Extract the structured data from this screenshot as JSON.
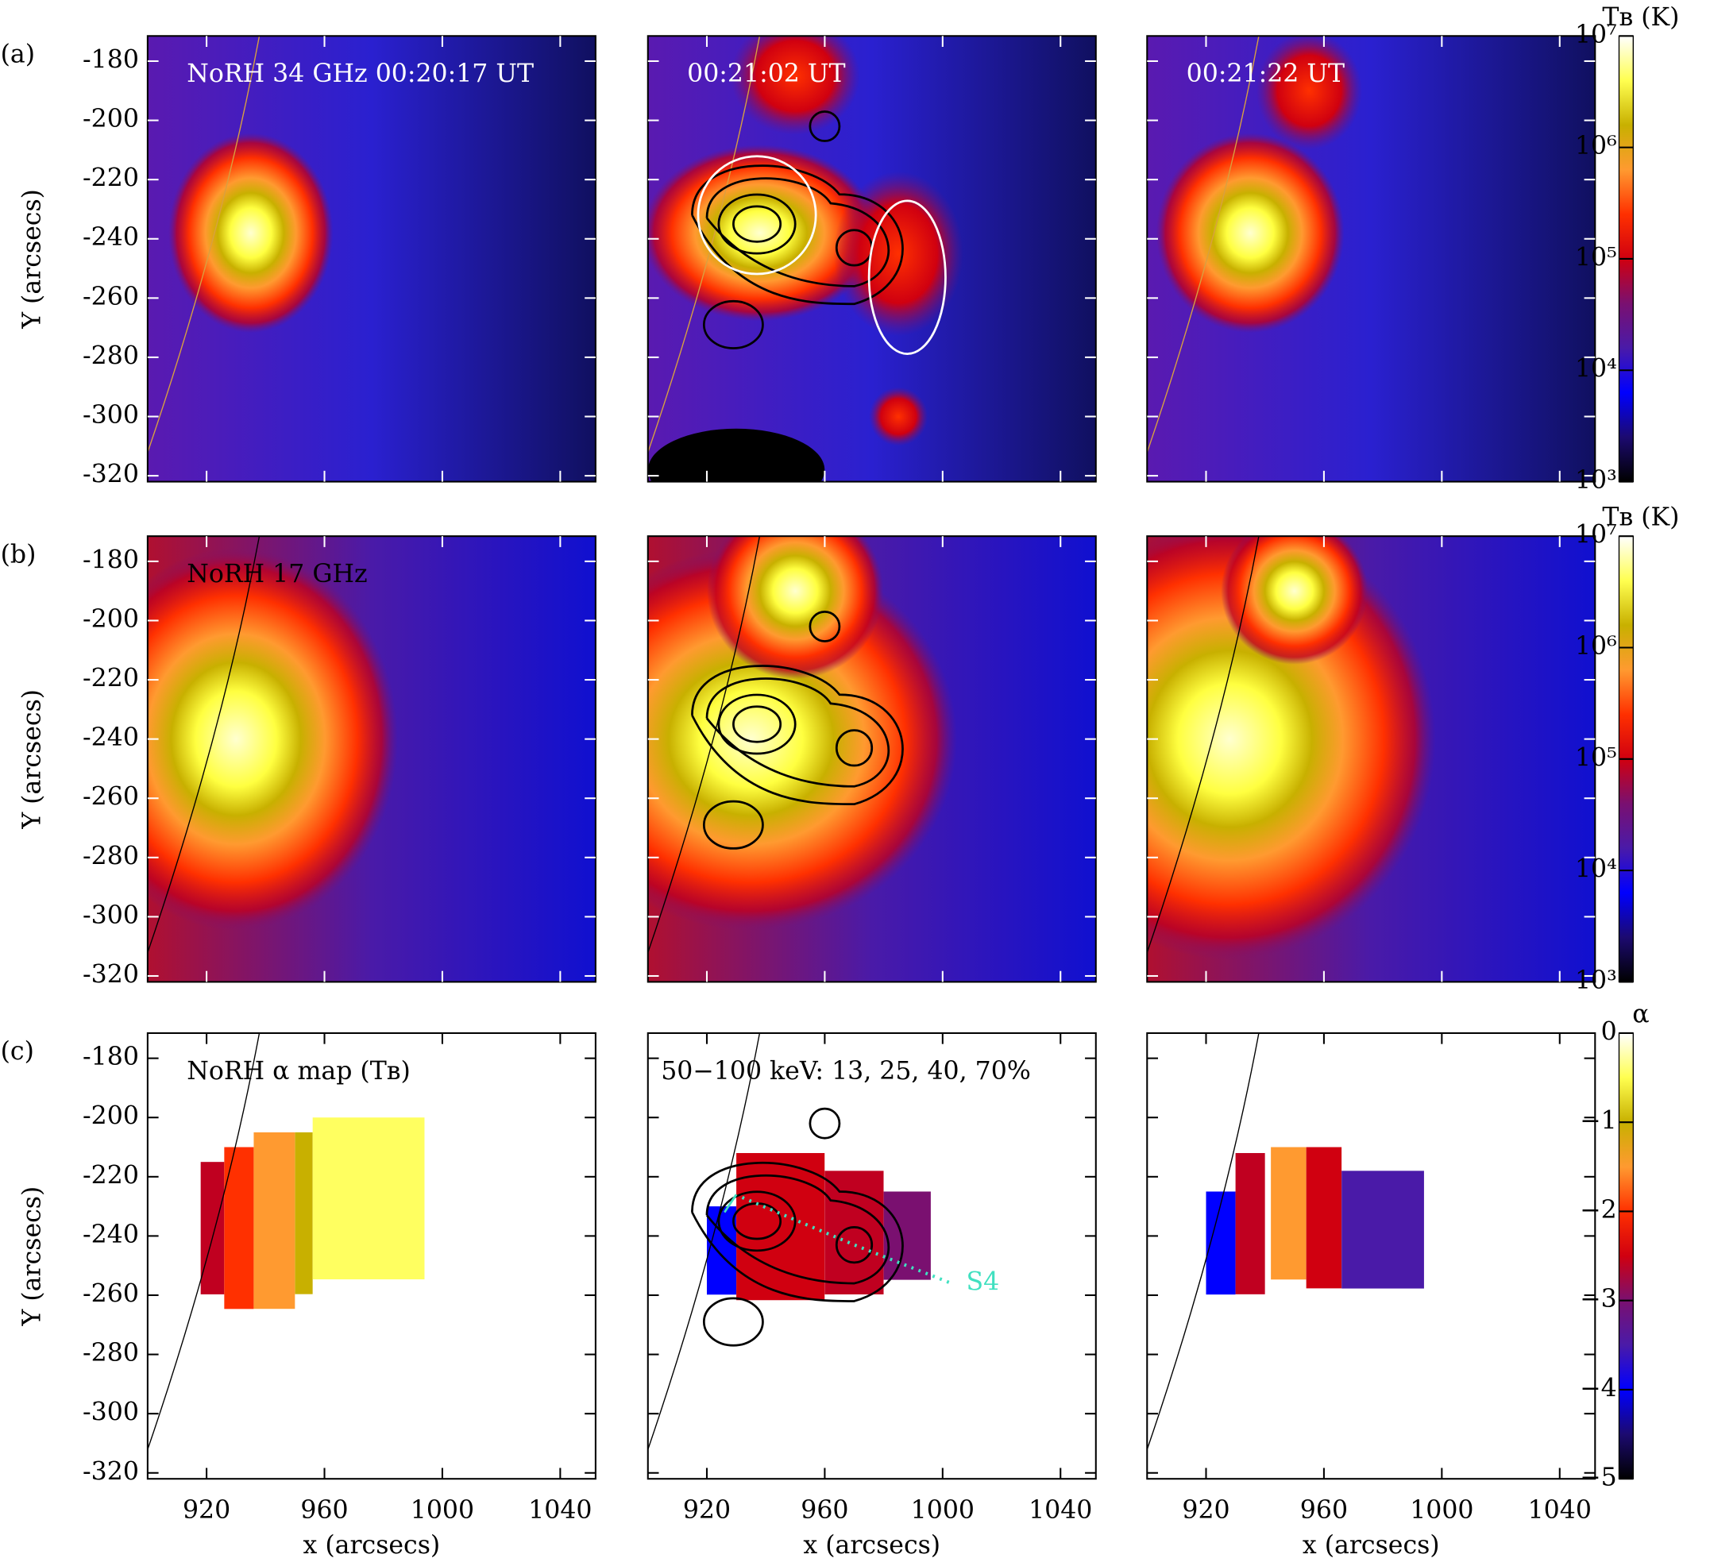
{
  "chart_data": [
    {
      "type": "map",
      "panel_label": "(a)",
      "annotation": "NoRH 34 GHz 00:20:17 UT",
      "ylabel": "Y (arcsecs)",
      "xlim": [
        900,
        1052
      ],
      "ylim": [
        -322,
        -171.5
      ],
      "xticks": [
        920,
        960,
        1000,
        1040
      ],
      "yticks": [
        -320,
        -300,
        -280,
        -260,
        -240,
        -220,
        -200,
        -180
      ],
      "tick_color": "#ffffff"
    },
    {
      "type": "map",
      "annotation": "00:21:02 UT",
      "xlim": [
        900,
        1052
      ],
      "ylim": [
        -322,
        -171.5
      ],
      "xticks": [
        920,
        960,
        1000,
        1040
      ],
      "yticks": [
        -320,
        -300,
        -280,
        -260,
        -240,
        -220,
        -200,
        -180
      ],
      "tick_color": "#ffffff"
    },
    {
      "type": "map",
      "annotation": "00:21:22 UT",
      "xlim": [
        900,
        1052
      ],
      "ylim": [
        -322,
        -171.5
      ],
      "xticks": [
        920,
        960,
        1000,
        1040
      ],
      "yticks": [
        -320,
        -300,
        -280,
        -260,
        -240,
        -220,
        -200,
        -180
      ],
      "tick_color": "#ffffff"
    },
    {
      "type": "map",
      "panel_label": "(b)",
      "annotation": "NoRH 17 GHz",
      "ylabel": "Y (arcsecs)",
      "xlim": [
        900,
        1052
      ],
      "ylim": [
        -322,
        -171.5
      ],
      "xticks": [
        920,
        960,
        1000,
        1040
      ],
      "yticks": [
        -320,
        -300,
        -280,
        -260,
        -240,
        -220,
        -200,
        -180
      ],
      "tick_color": "#ffffff"
    },
    {
      "type": "map",
      "xlim": [
        900,
        1052
      ],
      "ylim": [
        -322,
        -171.5
      ],
      "xticks": [
        920,
        960,
        1000,
        1040
      ],
      "yticks": [
        -320,
        -300,
        -280,
        -260,
        -240,
        -220,
        -200,
        -180
      ],
      "tick_color": "#ffffff"
    },
    {
      "type": "map",
      "xlim": [
        900,
        1052
      ],
      "ylim": [
        -322,
        -171.5
      ],
      "xticks": [
        920,
        960,
        1000,
        1040
      ],
      "yticks": [
        -320,
        -300,
        -280,
        -260,
        -240,
        -220,
        -200,
        -180
      ],
      "tick_color": "#ffffff"
    },
    {
      "type": "map",
      "panel_label": "(c)",
      "annotation": "NoRH α map (Tʙ)",
      "ylabel": "Y (arcsecs)",
      "xlabel": "x (arcsecs)",
      "xlim": [
        900,
        1052
      ],
      "ylim": [
        -322,
        -171.5
      ],
      "xticks": [
        920,
        960,
        1000,
        1040
      ],
      "yticks": [
        -320,
        -300,
        -280,
        -260,
        -240,
        -220,
        -200,
        -180
      ],
      "tick_color": "#000000"
    },
    {
      "type": "map",
      "annotation": "50−100 keV: 13, 25, 40, 70%",
      "marker_label": "S4",
      "xlabel": "x (arcsecs)",
      "xlim": [
        900,
        1052
      ],
      "ylim": [
        -322,
        -171.5
      ],
      "xticks": [
        920,
        960,
        1000,
        1040
      ],
      "yticks": [
        -320,
        -300,
        -280,
        -260,
        -240,
        -220,
        -200,
        -180
      ],
      "tick_color": "#000000"
    },
    {
      "type": "map",
      "xlabel": "x (arcsecs)",
      "xlim": [
        900,
        1052
      ],
      "ylim": [
        -322,
        -171.5
      ],
      "xticks": [
        920,
        960,
        1000,
        1040
      ],
      "yticks": [
        -320,
        -300,
        -280,
        -260,
        -240,
        -220,
        -200,
        -180
      ],
      "tick_color": "#000000"
    },
    {
      "type": "colorbar",
      "title": "Tʙ (K)",
      "log": true,
      "ylim": [
        1000,
        10000000
      ],
      "yticks": [
        {
          "value": 1000,
          "label": "10³"
        },
        {
          "value": 10000,
          "label": "10⁴"
        },
        {
          "value": 100000,
          "label": "10⁵"
        },
        {
          "value": 1000000,
          "label": "10⁶"
        },
        {
          "value": 10000000,
          "label": "10⁷"
        }
      ],
      "colormap": [
        "#000000",
        "#1c0a70",
        "#0000ff",
        "#4a1aa8",
        "#7a1070",
        "#d00010",
        "#ff3000",
        "#ff9a30",
        "#c8b000",
        "#ffff50",
        "#ffffff"
      ]
    },
    {
      "type": "colorbar",
      "title": "Tʙ (K)",
      "log": true,
      "ylim": [
        1000,
        10000000
      ],
      "yticks": [
        {
          "value": 1000,
          "label": "10³"
        },
        {
          "value": 10000,
          "label": "10⁴"
        },
        {
          "value": 100000,
          "label": "10⁵"
        },
        {
          "value": 1000000,
          "label": "10⁶"
        },
        {
          "value": 10000000,
          "label": "10⁷"
        }
      ],
      "colormap": [
        "#000000",
        "#1c0a70",
        "#0000ff",
        "#4a1aa8",
        "#7a1070",
        "#d00010",
        "#ff3000",
        "#ff9a30",
        "#c8b000",
        "#ffff50",
        "#ffffff"
      ]
    },
    {
      "type": "colorbar",
      "title": "α",
      "log": false,
      "ylim": [
        -5,
        0
      ],
      "yticks": [
        {
          "value": -5,
          "label": "−5"
        },
        {
          "value": -4,
          "label": "−4"
        },
        {
          "value": -3,
          "label": "−3"
        },
        {
          "value": -2,
          "label": "−2"
        },
        {
          "value": -1,
          "label": "−1"
        },
        0
      ],
      "colormap": [
        "#000000",
        "#1c0a70",
        "#0000ff",
        "#4a1aa8",
        "#7a1070",
        "#d00010",
        "#ff3000",
        "#ff9a30",
        "#c8b000",
        "#ffff50",
        "#ffffff"
      ]
    }
  ]
}
